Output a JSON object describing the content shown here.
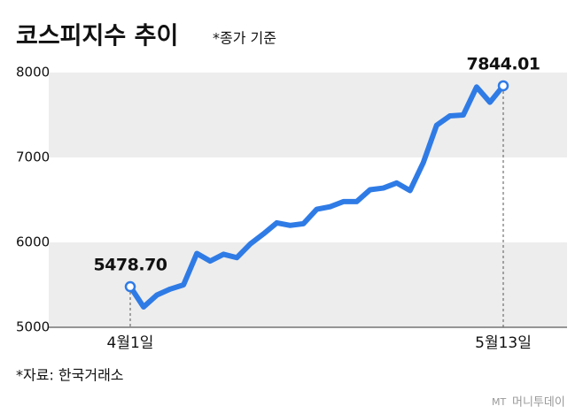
{
  "chart_data": {
    "type": "line",
    "title": "코스피지수 추이",
    "subtitle": "*종가 기준",
    "categories": [
      "4월1일",
      null,
      null,
      null,
      null,
      null,
      null,
      null,
      null,
      null,
      null,
      null,
      null,
      null,
      null,
      null,
      null,
      null,
      null,
      null,
      null,
      null,
      null,
      null,
      null,
      null,
      null,
      null,
      "5월13일"
    ],
    "series": [
      {
        "name": "코스피지수",
        "color": "#2f7be6",
        "values": [
          5478.7,
          5240,
          5380,
          5450,
          5500,
          5870,
          5780,
          5860,
          5820,
          5980,
          6100,
          6230,
          6200,
          6220,
          6390,
          6420,
          6480,
          6480,
          6620,
          6640,
          6700,
          6610,
          6940,
          7380,
          7490,
          7500,
          7830,
          7650,
          7844.01
        ],
        "value_labels": [
          "5478.70",
          null,
          null,
          null,
          null,
          null,
          null,
          null,
          null,
          null,
          null,
          null,
          null,
          null,
          null,
          null,
          null,
          null,
          null,
          null,
          null,
          null,
          null,
          null,
          null,
          null,
          null,
          null,
          "7844.01"
        ]
      }
    ],
    "ylim": [
      5000,
      8000
    ],
    "yticks": [
      5000,
      6000,
      7000,
      8000
    ],
    "source": "*자료: 한국거래소",
    "watermark": "머니투데이"
  }
}
